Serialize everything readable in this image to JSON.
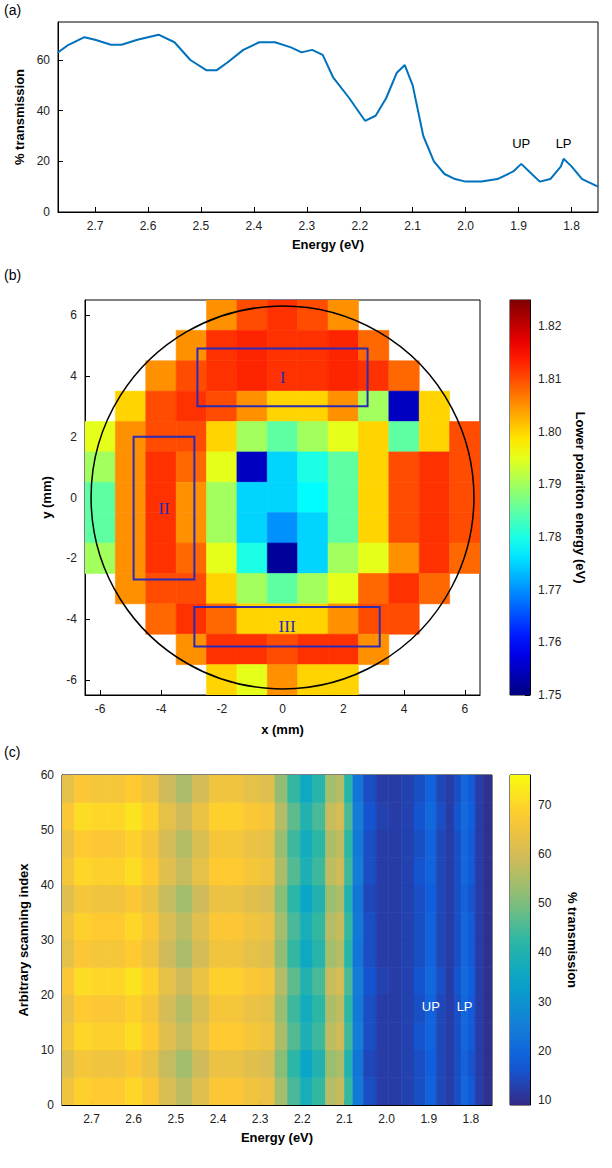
{
  "chart_data": [
    {
      "panel_label": "(a)",
      "type": "line",
      "color": "#0072bd",
      "grid": false,
      "xlabel": "Energy (eV)",
      "ylabel": "% transmission",
      "xlim": [
        2.77,
        1.75
      ],
      "xticks": [
        2.7,
        2.6,
        2.5,
        2.4,
        2.3,
        2.2,
        2.1,
        {
          "value": 2,
          "label": "2.0"
        },
        1.9,
        1.8
      ],
      "ylim": [
        0,
        75
      ],
      "yticks": [
        0,
        20,
        40,
        60
      ],
      "x": [
        2.77,
        2.75,
        2.72,
        2.7,
        2.67,
        2.65,
        2.62,
        2.58,
        2.55,
        2.52,
        2.49,
        2.47,
        2.45,
        2.42,
        2.39,
        2.36,
        2.33,
        2.31,
        2.29,
        2.27,
        2.25,
        2.22,
        2.2,
        2.19,
        2.17,
        2.15,
        2.13,
        2.115,
        2.1,
        2.08,
        2.06,
        2.04,
        2.02,
        2.0,
        1.97,
        1.94,
        1.91,
        1.895,
        1.88,
        1.86,
        1.84,
        1.82,
        1.815,
        1.8,
        1.78,
        1.75
      ],
      "values": [
        63,
        66,
        69,
        68,
        66,
        66,
        68,
        70,
        67,
        60,
        56,
        56,
        59,
        64,
        67,
        67,
        65,
        63,
        64,
        62,
        53,
        45,
        39,
        36,
        38,
        45,
        55,
        58,
        50,
        30,
        20,
        15,
        13,
        12,
        12,
        13,
        16,
        19,
        16,
        12,
        13,
        18,
        21,
        18,
        13,
        10
      ],
      "annotations": [
        {
          "text": "UP",
          "x": 1.895,
          "y": 27
        },
        {
          "text": "LP",
          "x": 1.815,
          "y": 27
        }
      ]
    },
    {
      "panel_label": "(b)",
      "type": "heatmap",
      "grid": false,
      "xlabel": "x (mm)",
      "ylabel": "y (mm)",
      "xlim": [
        -6.5,
        6.5
      ],
      "xticks": [
        -6,
        -4,
        -2,
        0,
        2,
        4,
        6
      ],
      "ylim": [
        -6.5,
        6.5
      ],
      "yticks": [
        -6,
        -4,
        -2,
        0,
        2,
        4,
        6
      ],
      "x": [
        -6,
        -5,
        -4,
        -3,
        -2,
        -1,
        0,
        1,
        2,
        3,
        4,
        5,
        6
      ],
      "y": [
        6,
        5,
        4,
        3,
        2,
        1,
        0,
        -1,
        -2,
        -3,
        -4,
        -5,
        -6
      ],
      "cells": [
        [
          null,
          null,
          null,
          null,
          1.805,
          1.81,
          1.812,
          1.81,
          1.805,
          null,
          null,
          null,
          null
        ],
        [
          null,
          null,
          null,
          1.805,
          1.812,
          1.813,
          1.812,
          1.812,
          1.813,
          1.808,
          null,
          null,
          null
        ],
        [
          null,
          null,
          1.805,
          1.81,
          1.812,
          1.813,
          1.812,
          1.812,
          1.813,
          1.812,
          1.808,
          null,
          null
        ],
        [
          null,
          1.8,
          1.81,
          1.812,
          1.81,
          1.805,
          1.8,
          1.8,
          1.805,
          1.79,
          1.755,
          1.8,
          null
        ],
        [
          1.795,
          1.805,
          1.81,
          1.81,
          1.8,
          1.79,
          1.785,
          1.79,
          1.795,
          1.8,
          1.785,
          1.8,
          1.81
        ],
        [
          1.79,
          1.805,
          1.812,
          1.808,
          1.795,
          1.755,
          1.775,
          1.78,
          1.785,
          1.8,
          1.81,
          1.812,
          1.81
        ],
        [
          1.785,
          1.805,
          1.812,
          1.805,
          1.79,
          1.775,
          1.775,
          1.778,
          1.785,
          1.8,
          1.81,
          1.812,
          1.81
        ],
        [
          1.785,
          1.805,
          1.812,
          1.805,
          1.79,
          1.775,
          1.77,
          1.775,
          1.785,
          1.8,
          1.81,
          1.812,
          1.81
        ],
        [
          1.79,
          1.805,
          1.812,
          1.808,
          1.795,
          1.78,
          1.752,
          1.775,
          1.79,
          1.795,
          1.805,
          1.812,
          1.808
        ],
        [
          null,
          1.805,
          1.81,
          1.81,
          1.8,
          1.79,
          1.785,
          1.79,
          1.795,
          1.808,
          1.812,
          1.808,
          null
        ],
        [
          null,
          null,
          1.808,
          1.812,
          1.808,
          1.8,
          1.8,
          1.8,
          1.805,
          1.81,
          1.81,
          null,
          null
        ],
        [
          null,
          null,
          null,
          1.805,
          1.812,
          1.812,
          1.81,
          1.812,
          1.812,
          1.805,
          null,
          null,
          null
        ],
        [
          null,
          null,
          null,
          null,
          1.8,
          1.795,
          1.805,
          1.8,
          1.8,
          null,
          null,
          null,
          null
        ]
      ],
      "colorbar": {
        "label": "Lower polariton energy (eV)",
        "range": [
          1.75,
          1.825
        ],
        "ticks": [
          1.75,
          1.76,
          1.77,
          1.78,
          1.79,
          {
            "value": 1.8,
            "label": "1.80"
          },
          1.81,
          1.82
        ]
      },
      "sample_circle": {
        "center": [
          0,
          0
        ],
        "radius": 6.3
      },
      "regions": [
        {
          "label": "I",
          "x": [
            -2.8,
            2.8
          ],
          "y": [
            3.0,
            4.9
          ]
        },
        {
          "label": "II",
          "x": [
            -4.9,
            -2.9
          ],
          "y": [
            -2.7,
            2.0
          ]
        },
        {
          "label": "III",
          "x": [
            -2.9,
            3.2
          ],
          "y": [
            -4.9,
            -3.6
          ]
        }
      ]
    },
    {
      "panel_label": "(c)",
      "type": "heatmap",
      "grid": false,
      "xlabel": "Energy (eV)",
      "ylabel": "Arbitrary scanning index",
      "xlim": [
        2.77,
        1.75
      ],
      "xticks": [
        2.7,
        2.6,
        2.5,
        2.4,
        2.3,
        2.2,
        2.1,
        {
          "value": 2,
          "label": "2.0"
        },
        1.9,
        1.8
      ],
      "ylim": [
        0,
        60
      ],
      "yticks": [
        0,
        10,
        20,
        30,
        40,
        50,
        60
      ],
      "x": [
        2.76,
        2.72,
        2.68,
        2.64,
        2.6,
        2.56,
        2.52,
        2.48,
        2.44,
        2.4,
        2.36,
        2.32,
        2.28,
        2.25,
        2.22,
        2.19,
        2.16,
        2.13,
        2.11,
        2.09,
        2.07,
        2.04,
        2.01,
        1.98,
        1.95,
        1.92,
        1.895,
        1.87,
        1.85,
        1.83,
        1.815,
        1.8,
        1.78,
        1.76
      ],
      "y": [
        0,
        5,
        10,
        15,
        20,
        25,
        30,
        35,
        40,
        45,
        50,
        55
      ],
      "cells": [
        [
          65,
          69,
          68,
          68,
          70,
          67,
          61,
          57,
          62,
          67,
          67,
          65,
          64,
          54,
          45,
          38,
          43,
          56,
          58,
          43,
          24,
          15,
          12,
          12,
          13,
          15,
          19,
          14,
          12,
          15,
          20,
          17,
          12,
          10
        ],
        [
          62,
          66,
          65,
          65,
          67,
          64,
          58,
          54,
          59,
          64,
          64,
          62,
          61,
          51,
          42,
          35,
          40,
          53,
          55,
          40,
          23,
          14,
          12,
          12,
          13,
          15,
          18,
          14,
          12,
          15,
          19,
          16,
          12,
          10
        ],
        [
          66,
          70,
          69,
          69,
          71,
          68,
          62,
          58,
          63,
          68,
          68,
          66,
          65,
          55,
          46,
          39,
          44,
          57,
          59,
          44,
          25,
          15,
          12,
          12,
          13,
          16,
          19,
          14,
          12,
          15,
          20,
          17,
          12,
          10
        ],
        [
          64,
          68,
          67,
          67,
          69,
          66,
          60,
          56,
          61,
          66,
          66,
          64,
          63,
          53,
          44,
          37,
          42,
          55,
          57,
          42,
          24,
          15,
          12,
          12,
          13,
          15,
          19,
          14,
          12,
          15,
          20,
          17,
          12,
          10
        ],
        [
          67,
          71,
          70,
          70,
          72,
          69,
          63,
          59,
          64,
          69,
          69,
          67,
          66,
          56,
          47,
          40,
          45,
          58,
          60,
          45,
          25,
          16,
          13,
          12,
          13,
          16,
          20,
          15,
          12,
          16,
          21,
          18,
          12,
          10
        ],
        [
          63,
          67,
          66,
          66,
          68,
          65,
          59,
          55,
          60,
          65,
          65,
          63,
          62,
          52,
          43,
          36,
          41,
          54,
          56,
          41,
          23,
          15,
          12,
          12,
          13,
          15,
          19,
          14,
          12,
          15,
          20,
          17,
          12,
          10
        ],
        [
          65,
          69,
          68,
          68,
          70,
          67,
          61,
          57,
          62,
          67,
          67,
          65,
          64,
          54,
          45,
          38,
          43,
          56,
          58,
          43,
          24,
          15,
          12,
          12,
          13,
          15,
          19,
          14,
          12,
          15,
          20,
          17,
          12,
          10
        ],
        [
          62,
          66,
          65,
          65,
          67,
          64,
          58,
          54,
          59,
          64,
          64,
          62,
          61,
          51,
          42,
          35,
          40,
          53,
          55,
          40,
          23,
          14,
          12,
          12,
          13,
          15,
          18,
          14,
          12,
          15,
          19,
          16,
          12,
          10
        ],
        [
          66,
          70,
          69,
          69,
          71,
          68,
          62,
          58,
          63,
          68,
          68,
          66,
          65,
          55,
          46,
          39,
          44,
          57,
          59,
          44,
          25,
          15,
          12,
          12,
          13,
          16,
          19,
          14,
          12,
          15,
          20,
          17,
          12,
          10
        ],
        [
          64,
          68,
          67,
          67,
          69,
          66,
          60,
          56,
          61,
          66,
          66,
          64,
          63,
          53,
          44,
          37,
          42,
          55,
          57,
          42,
          24,
          15,
          12,
          12,
          13,
          15,
          19,
          14,
          12,
          15,
          20,
          17,
          12,
          10
        ],
        [
          67,
          71,
          70,
          70,
          72,
          69,
          63,
          59,
          64,
          69,
          69,
          67,
          66,
          56,
          47,
          40,
          45,
          58,
          60,
          45,
          25,
          16,
          13,
          12,
          13,
          16,
          20,
          15,
          12,
          16,
          21,
          18,
          12,
          10
        ],
        [
          63,
          67,
          66,
          66,
          68,
          65,
          59,
          55,
          60,
          65,
          65,
          63,
          62,
          52,
          43,
          36,
          41,
          54,
          56,
          41,
          23,
          15,
          12,
          12,
          13,
          15,
          19,
          14,
          12,
          15,
          20,
          17,
          12,
          10
        ]
      ],
      "colorbar": {
        "label": "% transmission",
        "range": [
          9,
          76
        ],
        "ticks": [
          10,
          20,
          30,
          40,
          50,
          60,
          70
        ]
      },
      "annotations": [
        {
          "text": "UP",
          "x": 1.895,
          "y": 18
        },
        {
          "text": "LP",
          "x": 1.815,
          "y": 18
        }
      ]
    }
  ]
}
